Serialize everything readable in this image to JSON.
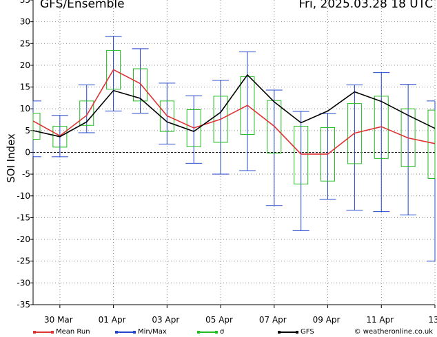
{
  "header": {
    "title": "GFS/Ensemble",
    "datetime": "Fri, 2025.03.28   18 UTC"
  },
  "legend": {
    "mean": {
      "label": "Mean Run",
      "color": "#dd3333"
    },
    "minmax": {
      "label": "Min/Max",
      "color": "#2244cc"
    },
    "sigma": {
      "label": "σ",
      "color": "#22bb22"
    },
    "gfs": {
      "label": "GFS",
      "color": "#000000"
    }
  },
  "credit": "© weatheronline.co.uk",
  "chart_data": {
    "type": "line",
    "ylabel": "SOI Index",
    "ylim": [
      -35,
      35
    ],
    "yticks": [
      -35,
      -30,
      -25,
      -20,
      -15,
      -10,
      -5,
      0,
      5,
      10,
      15,
      20,
      25,
      30,
      35
    ],
    "xlim": [
      0,
      15
    ],
    "xticks": [
      {
        "x": 1,
        "label": "30 Mar"
      },
      {
        "x": 3,
        "label": "01 Apr"
      },
      {
        "x": 5,
        "label": "03 Apr"
      },
      {
        "x": 7,
        "label": "05 Apr"
      },
      {
        "x": 9,
        "label": "07 Apr"
      },
      {
        "x": 11,
        "label": "09 Apr"
      },
      {
        "x": 13,
        "label": "11 Apr"
      },
      {
        "x": 15,
        "label": "13"
      }
    ],
    "grid": true,
    "x": [
      0,
      1,
      2,
      3,
      4,
      5,
      6,
      7,
      8,
      9,
      10,
      11,
      12,
      13,
      14,
      15
    ],
    "series": [
      {
        "name": "Mean Run",
        "values": [
          7.2,
          3.8,
          8.5,
          19.0,
          15.8,
          8.4,
          5.6,
          7.6,
          10.8,
          6.0,
          -0.4,
          -0.4,
          4.4,
          5.9,
          3.3,
          2.0
        ]
      },
      {
        "name": "GFS",
        "values": [
          5.0,
          3.6,
          7.0,
          14.2,
          12.4,
          7.0,
          4.8,
          9.2,
          17.8,
          11.6,
          6.8,
          9.5,
          13.9,
          11.7,
          8.5,
          5.5
        ]
      },
      {
        "name": "Min/Max",
        "min": [
          -1.0,
          -1.0,
          4.5,
          9.5,
          9.0,
          1.9,
          -2.5,
          -5.0,
          -4.2,
          -12.2,
          -18.0,
          -10.8,
          -13.3,
          -13.6,
          -14.4,
          -25.0
        ],
        "max": [
          11.8,
          8.5,
          15.5,
          26.6,
          23.8,
          15.9,
          13.0,
          16.6,
          23.1,
          14.3,
          9.4,
          8.9,
          15.5,
          18.3,
          15.6,
          11.8
        ]
      },
      {
        "name": "σ",
        "low": [
          3.0,
          1.2,
          6.2,
          14.5,
          11.8,
          4.8,
          1.3,
          2.3,
          4.1,
          -0.2,
          -7.3,
          -6.6,
          -2.6,
          -1.4,
          -3.3,
          -6.0
        ],
        "high": [
          9.0,
          6.0,
          11.8,
          23.4,
          19.2,
          11.8,
          9.8,
          12.9,
          17.4,
          11.9,
          6.0,
          5.7,
          11.2,
          12.9,
          10.0,
          9.7
        ]
      }
    ]
  }
}
